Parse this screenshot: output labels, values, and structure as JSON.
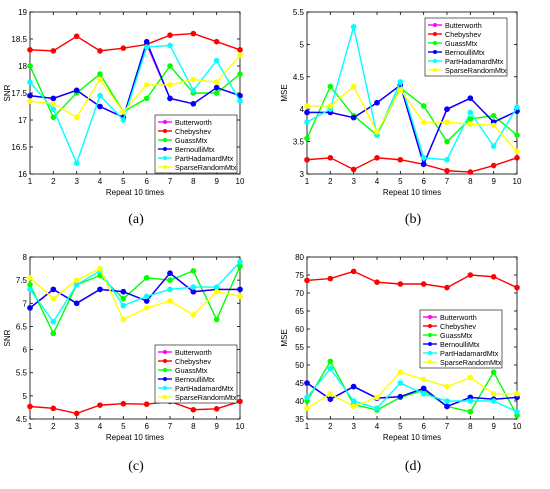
{
  "panels": [
    {
      "caption": "(a)",
      "chart_data": {
        "type": "line",
        "xlabel": "Repeat 10 times",
        "ylabel": "SNR",
        "x": [
          1,
          2,
          3,
          4,
          5,
          6,
          7,
          8,
          9,
          10
        ],
        "xlim": [
          1,
          10
        ],
        "ylim": [
          16,
          19
        ],
        "yticks": [
          "16",
          "16.5",
          "17",
          "17.5",
          "18",
          "18.5",
          "19"
        ],
        "xticks": [
          "1",
          "2",
          "3",
          "4",
          "5",
          "6",
          "7",
          "8",
          "9",
          "10"
        ],
        "grid": false,
        "legend_position": "center-right",
        "series": [
          {
            "name": "Butterworth",
            "color": "#ff00ff",
            "values": [
              17.45,
              17.4,
              17.55,
              17.25,
              17.05,
              18.4,
              17.4,
              17.3,
              17.6,
              17.45
            ]
          },
          {
            "name": "Chebyshev",
            "color": "#ff0000",
            "values": [
              18.3,
              18.28,
              18.55,
              18.28,
              18.33,
              18.4,
              18.57,
              18.6,
              18.45,
              18.3
            ]
          },
          {
            "name": "GuassMtx",
            "color": "#00ff00",
            "values": [
              18.0,
              17.05,
              17.5,
              17.85,
              17.15,
              17.4,
              18.0,
              17.5,
              17.5,
              17.85
            ]
          },
          {
            "name": "BernoulliMtx",
            "color": "#0000ff",
            "values": [
              17.45,
              17.4,
              17.55,
              17.25,
              17.05,
              18.45,
              17.4,
              17.3,
              17.6,
              17.45
            ]
          },
          {
            "name": "PartHadamardMtx",
            "color": "#00ffff",
            "values": [
              17.7,
              17.2,
              16.2,
              17.45,
              17.0,
              18.35,
              18.38,
              17.55,
              18.1,
              17.35
            ]
          },
          {
            "name": "SparseRandomMtx",
            "color": "#ffff00",
            "values": [
              17.35,
              17.3,
              17.05,
              17.75,
              17.15,
              17.65,
              17.65,
              17.75,
              17.7,
              18.2
            ]
          }
        ]
      }
    },
    {
      "caption": "(b)",
      "chart_data": {
        "type": "line",
        "xlabel": "Repeat 10 times",
        "ylabel": "MSE",
        "x": [
          1,
          2,
          3,
          4,
          5,
          6,
          7,
          8,
          9,
          10
        ],
        "xlim": [
          1,
          10
        ],
        "ylim": [
          3,
          5.5
        ],
        "yticks": [
          "3",
          "3.5",
          "4",
          "4.5",
          "5",
          "5.5"
        ],
        "xticks": [
          "1",
          "2",
          "3",
          "4",
          "5",
          "6",
          "7",
          "8",
          "9",
          "10"
        ],
        "grid": false,
        "legend_position": "top-right",
        "series": [
          {
            "name": "Butterworth",
            "color": "#ff00ff",
            "values": [
              3.95,
              3.95,
              3.87,
              4.1,
              4.37,
              3.15,
              4.0,
              4.17,
              3.8,
              3.97
            ]
          },
          {
            "name": "Chebyshev",
            "color": "#ff0000",
            "values": [
              3.22,
              3.25,
              3.07,
              3.25,
              3.22,
              3.15,
              3.05,
              3.03,
              3.13,
              3.25
            ]
          },
          {
            "name": "GuassMtx",
            "color": "#00ff00",
            "values": [
              3.55,
              4.35,
              3.9,
              3.6,
              4.33,
              4.05,
              3.5,
              3.85,
              3.9,
              3.6
            ]
          },
          {
            "name": "BernoulliMtx",
            "color": "#0000ff",
            "values": [
              3.95,
              3.95,
              3.87,
              4.1,
              4.37,
              3.15,
              4.0,
              4.17,
              3.8,
              3.97
            ]
          },
          {
            "name": "PartHadamardMtx",
            "color": "#00ffff",
            "values": [
              3.8,
              4.0,
              5.27,
              3.6,
              4.42,
              3.25,
              3.22,
              3.95,
              3.43,
              4.03
            ]
          },
          {
            "name": "SparseRandomMtx",
            "color": "#ffff00",
            "values": [
              4.05,
              4.05,
              4.35,
              3.65,
              4.3,
              3.8,
              3.8,
              3.77,
              3.75,
              3.35
            ]
          }
        ]
      }
    },
    {
      "caption": "(c)",
      "chart_data": {
        "type": "line",
        "xlabel": "Repeat 10 times",
        "ylabel": "SNR",
        "x": [
          1,
          2,
          3,
          4,
          5,
          6,
          7,
          8,
          9,
          10
        ],
        "xlim": [
          1,
          10
        ],
        "ylim": [
          4.5,
          8
        ],
        "yticks": [
          "4.5",
          "5",
          "5.5",
          "6",
          "6.5",
          "7",
          "7.5",
          "8"
        ],
        "xticks": [
          "1",
          "2",
          "3",
          "4",
          "5",
          "6",
          "7",
          "8",
          "9",
          "10"
        ],
        "grid": false,
        "legend_position": "center-right",
        "series": [
          {
            "name": "Butterworth",
            "color": "#ff00ff",
            "values": [
              6.9,
              7.3,
              7.0,
              7.3,
              7.25,
              7.05,
              7.65,
              7.25,
              7.3,
              7.3
            ]
          },
          {
            "name": "Chebyshev",
            "color": "#ff0000",
            "values": [
              4.77,
              4.73,
              4.62,
              4.8,
              4.83,
              4.82,
              4.88,
              4.7,
              4.72,
              4.88
            ]
          },
          {
            "name": "GuassMtx",
            "color": "#00ff00",
            "values": [
              7.4,
              6.35,
              7.4,
              7.6,
              7.1,
              7.55,
              7.5,
              7.7,
              6.65,
              7.8
            ]
          },
          {
            "name": "BernoulliMtx",
            "color": "#0000ff",
            "values": [
              6.9,
              7.3,
              7.0,
              7.3,
              7.25,
              7.05,
              7.65,
              7.25,
              7.3,
              7.3
            ]
          },
          {
            "name": "PartHadamardMtx",
            "color": "#00ffff",
            "values": [
              7.3,
              6.6,
              7.4,
              7.7,
              6.95,
              7.15,
              7.3,
              7.35,
              7.35,
              7.9
            ]
          },
          {
            "name": "SparseRandomMtx",
            "color": "#ffff00",
            "values": [
              7.55,
              7.1,
              7.5,
              7.75,
              6.65,
              6.9,
              7.05,
              6.75,
              7.25,
              7.15
            ]
          }
        ]
      }
    },
    {
      "caption": "(d)",
      "chart_data": {
        "type": "line",
        "xlabel": "Repeat 10 times",
        "ylabel": "MSE",
        "x": [
          1,
          2,
          3,
          4,
          5,
          6,
          7,
          8,
          9,
          10
        ],
        "xlim": [
          1,
          10
        ],
        "ylim": [
          35,
          80
        ],
        "yticks": [
          "35",
          "40",
          "45",
          "50",
          "55",
          "60",
          "65",
          "70",
          "75",
          "80"
        ],
        "xticks": [
          "1",
          "2",
          "3",
          "4",
          "5",
          "6",
          "7",
          "8",
          "9",
          "10"
        ],
        "grid": false,
        "legend_position": "top-right",
        "series": [
          {
            "name": "Butterworth",
            "color": "#ff00ff",
            "values": [
              45,
              40.5,
              44,
              40.8,
              41.2,
              43.5,
              38.5,
              41,
              40.5,
              41
            ]
          },
          {
            "name": "Chebyshev",
            "color": "#ff0000",
            "values": [
              73.5,
              74,
              76,
              73,
              72.5,
              72.5,
              71.5,
              75,
              74.5,
              71.5
            ]
          },
          {
            "name": "GuassMtx",
            "color": "#00ff00",
            "values": [
              40,
              51,
              39,
              37.5,
              41,
              43,
              38.5,
              37,
              48,
              36
            ]
          },
          {
            "name": "BernoulliMtx",
            "color": "#0000ff",
            "values": [
              45,
              40.5,
              44,
              40.8,
              41.2,
              43.5,
              38.5,
              41,
              40.5,
              41
            ]
          },
          {
            "name": "PartHadamardMtx",
            "color": "#00ffff",
            "values": [
              41,
              49,
              40,
              38,
              45,
              42,
              40,
              40,
              40,
              37
            ]
          },
          {
            "name": "SparseRandomMtx",
            "color": "#ffff00",
            "values": [
              38,
              42,
              38.5,
              41,
              48,
              46,
              44,
              46.5,
              42,
              42
            ]
          }
        ]
      }
    }
  ]
}
